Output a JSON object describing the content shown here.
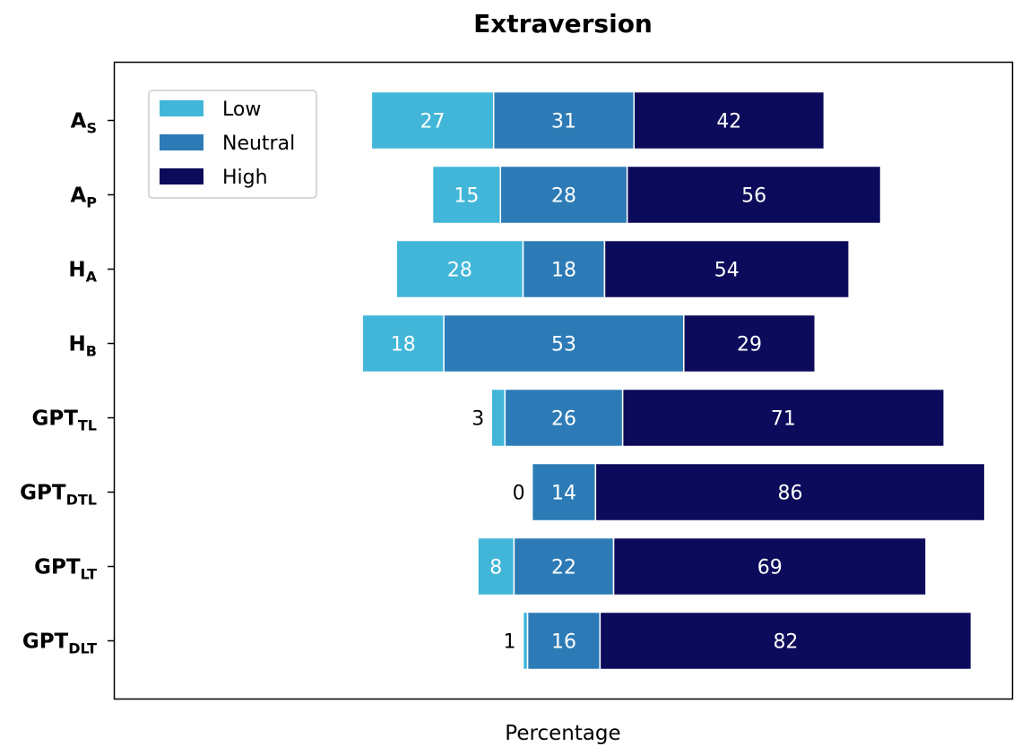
{
  "chart_data": {
    "type": "bar",
    "orientation": "horizontal",
    "stacked": true,
    "layout": "diverging-centered-on-neutral",
    "title": "Extraversion",
    "xlabel": "Percentage",
    "ylabel": "",
    "grid": false,
    "legend_position": "upper-left",
    "categories": [
      {
        "main": "A",
        "sub": "S"
      },
      {
        "main": "A",
        "sub": "P"
      },
      {
        "main": "H",
        "sub": "A"
      },
      {
        "main": "H",
        "sub": "B"
      },
      {
        "main": "GPT",
        "sub": "TL"
      },
      {
        "main": "GPT",
        "sub": "DTL"
      },
      {
        "main": "GPT",
        "sub": "LT"
      },
      {
        "main": "GPT",
        "sub": "DLT"
      }
    ],
    "series": [
      {
        "name": "Low",
        "color": "#41b6d9",
        "values": [
          27,
          15,
          28,
          18,
          3,
          0,
          8,
          1
        ]
      },
      {
        "name": "Neutral",
        "color": "#2c7bb6",
        "values": [
          31,
          28,
          18,
          53,
          26,
          14,
          22,
          16
        ]
      },
      {
        "name": "High",
        "color": "#0c0a5a",
        "values": [
          42,
          56,
          54,
          29,
          71,
          86,
          69,
          82
        ]
      }
    ]
  }
}
